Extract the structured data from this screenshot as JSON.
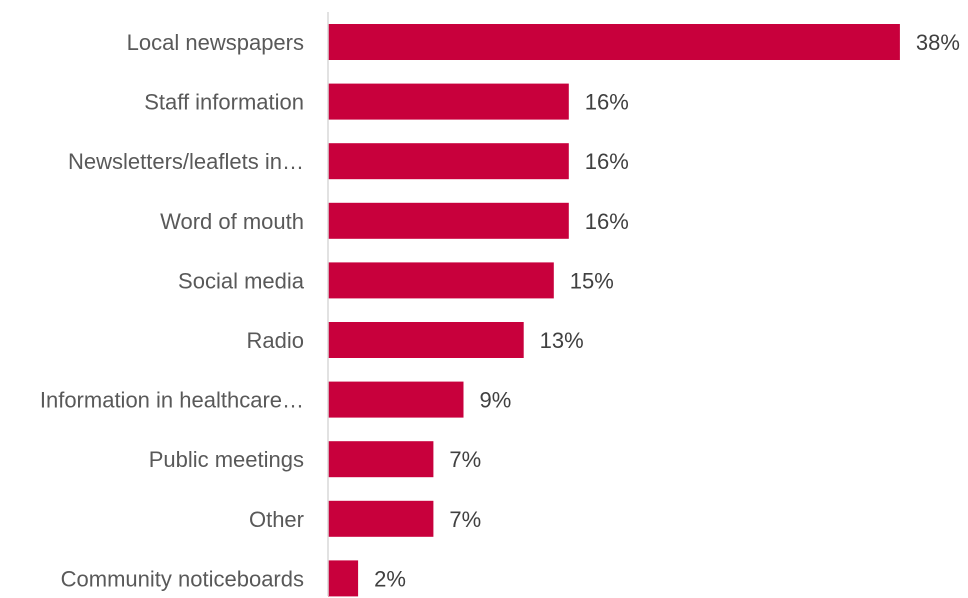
{
  "chart_data": {
    "type": "bar",
    "orientation": "horizontal",
    "categories": [
      "Local newspapers",
      "Staff information",
      "Newsletters/leaflets in…",
      "Word of mouth",
      "Social media",
      "Radio",
      "Information in healthcare…",
      "Public meetings",
      "Other",
      "Community noticeboards"
    ],
    "values": [
      38,
      16,
      16,
      16,
      15,
      13,
      9,
      7,
      7,
      2
    ],
    "value_labels": [
      "38%",
      "16%",
      "16%",
      "16%",
      "15%",
      "13%",
      "9%",
      "7%",
      "7%",
      "2%"
    ],
    "unit": "%",
    "title": "",
    "xlabel": "",
    "ylabel": "",
    "xlim": [
      0,
      40
    ],
    "grid": false,
    "legend": "none",
    "bar_color": "#C8003C",
    "axis_color": "#D9D9D9"
  }
}
